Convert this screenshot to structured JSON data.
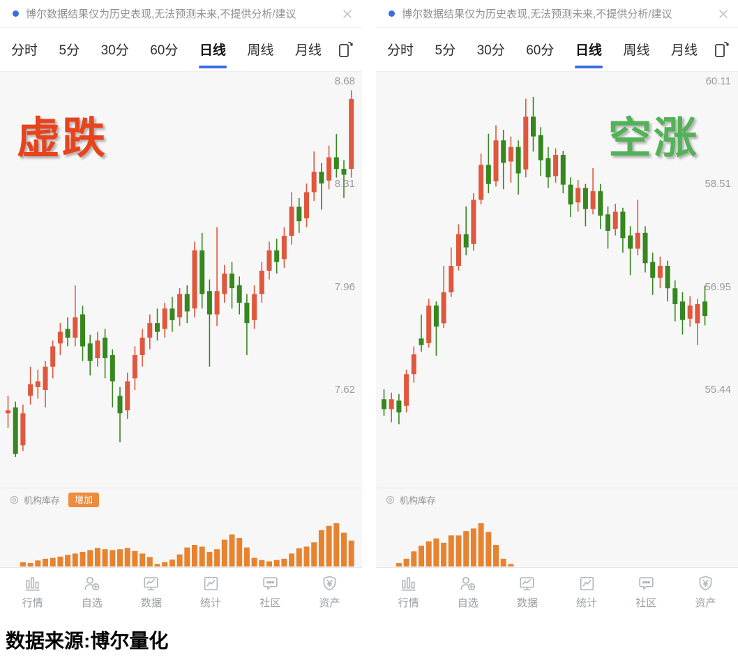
{
  "colors": {
    "candle_up": "#df573d",
    "candle_down": "#35871e",
    "volume_bar": "#e7832f",
    "accent_blue": "#3a6ee0",
    "notice_dot_blue": "#3a6be0",
    "badge_orange": "#ee8b3c",
    "overlay_red": "#e8431c",
    "overlay_green": "#53b257",
    "chart_background": "#f7f7f8",
    "axis_text_gray": "#9b9b9b",
    "nav_gray": "#9aa0a6"
  },
  "footer": {
    "source_label": "数据来源:博尔量化"
  },
  "panels": [
    {
      "notice": {
        "text": "博尔数据结果仅为历史表现,无法预测未来,不提供分析/建议",
        "close_icon": "close-x"
      },
      "tabs": [
        {
          "label": "分时",
          "active": false
        },
        {
          "label": "5分",
          "active": false
        },
        {
          "label": "30分",
          "active": false
        },
        {
          "label": "60分",
          "active": false
        },
        {
          "label": "日线",
          "active": true
        },
        {
          "label": "周线",
          "active": false
        },
        {
          "label": "月线",
          "active": false
        }
      ],
      "overlay": {
        "text": "虚跌",
        "color": "#e8431c",
        "position": "top-left"
      },
      "indicator": {
        "label": "机构库存",
        "badge": "增加"
      },
      "y_axis": {
        "ticks": [
          {
            "label": "8.68",
            "price": 8.68
          },
          {
            "label": "8.31",
            "price": 8.31
          },
          {
            "label": "7.96",
            "price": 7.96
          },
          {
            "label": "7.62",
            "price": 7.62
          }
        ]
      },
      "chart_data": {
        "type": "candlestick",
        "ylim": [
          7.28,
          8.72
        ],
        "ohlc": [
          [
            7.54,
            7.6,
            7.49,
            7.55
          ],
          [
            7.56,
            7.58,
            7.39,
            7.4
          ],
          [
            7.43,
            7.57,
            7.41,
            7.54
          ],
          [
            7.6,
            7.7,
            7.57,
            7.64
          ],
          [
            7.63,
            7.69,
            7.59,
            7.65
          ],
          [
            7.62,
            7.72,
            7.56,
            7.7
          ],
          [
            7.7,
            7.79,
            7.66,
            7.77
          ],
          [
            7.78,
            7.85,
            7.74,
            7.82
          ],
          [
            7.83,
            7.87,
            7.77,
            7.8
          ],
          [
            7.8,
            7.98,
            7.77,
            7.87
          ],
          [
            7.88,
            7.91,
            7.72,
            7.77
          ],
          [
            7.78,
            7.81,
            7.67,
            7.72
          ],
          [
            7.73,
            7.82,
            7.7,
            7.79
          ],
          [
            7.8,
            7.83,
            7.66,
            7.73
          ],
          [
            7.74,
            7.76,
            7.56,
            7.65
          ],
          [
            7.6,
            7.63,
            7.44,
            7.54
          ],
          [
            7.55,
            7.68,
            7.52,
            7.65
          ],
          [
            7.66,
            7.77,
            7.62,
            7.74
          ],
          [
            7.74,
            7.83,
            7.7,
            7.8
          ],
          [
            7.8,
            7.88,
            7.76,
            7.85
          ],
          [
            7.85,
            7.9,
            7.79,
            7.82
          ],
          [
            7.83,
            7.92,
            7.8,
            7.9
          ],
          [
            7.9,
            7.94,
            7.82,
            7.86
          ],
          [
            7.87,
            7.97,
            7.84,
            7.95
          ],
          [
            7.95,
            7.98,
            7.85,
            7.89
          ],
          [
            7.9,
            8.13,
            7.87,
            8.1
          ],
          [
            8.1,
            8.16,
            7.9,
            7.95
          ],
          [
            7.96,
            8.0,
            7.7,
            7.88
          ],
          [
            7.88,
            8.18,
            7.84,
            7.96
          ],
          [
            7.95,
            8.05,
            7.92,
            8.02
          ],
          [
            8.02,
            8.06,
            7.9,
            7.97
          ],
          [
            7.98,
            8.01,
            7.88,
            7.92
          ],
          [
            7.92,
            7.95,
            7.74,
            7.85
          ],
          [
            7.86,
            7.98,
            7.83,
            7.95
          ],
          [
            7.95,
            8.06,
            7.92,
            8.03
          ],
          [
            8.03,
            8.13,
            8.0,
            8.1
          ],
          [
            8.1,
            8.14,
            8.02,
            8.06
          ],
          [
            8.07,
            8.18,
            8.04,
            8.15
          ],
          [
            8.15,
            8.3,
            8.12,
            8.25
          ],
          [
            8.25,
            8.28,
            8.16,
            8.2
          ],
          [
            8.21,
            8.33,
            8.18,
            8.3
          ],
          [
            8.3,
            8.44,
            8.27,
            8.37
          ],
          [
            8.37,
            8.4,
            8.24,
            8.33
          ],
          [
            8.34,
            8.46,
            8.31,
            8.42
          ],
          [
            8.42,
            8.5,
            8.35,
            8.38
          ],
          [
            8.38,
            8.41,
            8.28,
            8.36
          ],
          [
            8.38,
            8.65,
            8.35,
            8.62
          ]
        ],
        "volume": [
          0,
          0,
          0.1,
          0.08,
          0.14,
          0.18,
          0.2,
          0.23,
          0.27,
          0.3,
          0.34,
          0.38,
          0.43,
          0.4,
          0.38,
          0.4,
          0.43,
          0.36,
          0.3,
          0.22,
          0.06,
          0.1,
          0.16,
          0.28,
          0.44,
          0.5,
          0.46,
          0.34,
          0.4,
          0.62,
          0.74,
          0.66,
          0.44,
          0.2,
          0.15,
          0.12,
          0.15,
          0.18,
          0.3,
          0.42,
          0.46,
          0.56,
          0.84,
          0.94,
          1.0,
          0.78,
          0.6
        ]
      },
      "nav": [
        {
          "label": "行情",
          "icon": "bar-chart-icon"
        },
        {
          "label": "自选",
          "icon": "user-add-icon"
        },
        {
          "label": "数据",
          "icon": "monitor-chart-icon"
        },
        {
          "label": "统计",
          "icon": "stats-chart-icon"
        },
        {
          "label": "社区",
          "icon": "chat-bubble-icon"
        },
        {
          "label": "资产",
          "icon": "shield-yen-icon"
        }
      ]
    },
    {
      "notice": {
        "text": "博尔数据结果仅为历史表现,无法预测未来,不提供分析/建议",
        "close_icon": "close-x"
      },
      "tabs": [
        {
          "label": "分时",
          "active": false
        },
        {
          "label": "5分",
          "active": false
        },
        {
          "label": "30分",
          "active": false
        },
        {
          "label": "60分",
          "active": false
        },
        {
          "label": "日线",
          "active": true
        },
        {
          "label": "周线",
          "active": false
        },
        {
          "label": "月线",
          "active": false
        }
      ],
      "overlay": {
        "text": "空涨",
        "color": "#53b257",
        "position": "top-right"
      },
      "indicator": {
        "label": "机构库存",
        "badge": ""
      },
      "y_axis": {
        "ticks": [
          {
            "label": "60.11",
            "price": 60.11
          },
          {
            "label": "58.51",
            "price": 58.51
          },
          {
            "label": "56.95",
            "price": 56.95
          },
          {
            "label": "55.44",
            "price": 55.44
          }
        ]
      },
      "chart_data": {
        "type": "candlestick",
        "ylim": [
          53.95,
          60.26
        ],
        "ohlc": [
          [
            55.3,
            55.45,
            55.05,
            55.15
          ],
          [
            55.15,
            55.4,
            54.95,
            55.3
          ],
          [
            55.28,
            55.38,
            54.92,
            55.1
          ],
          [
            55.2,
            55.75,
            55.1,
            55.68
          ],
          [
            55.68,
            56.1,
            55.55,
            55.98
          ],
          [
            56.22,
            56.58,
            56.02,
            56.12
          ],
          [
            56.15,
            56.82,
            56.08,
            56.72
          ],
          [
            56.72,
            56.78,
            55.96,
            56.4
          ],
          [
            56.45,
            57.32,
            56.38,
            56.92
          ],
          [
            56.92,
            57.6,
            56.85,
            57.32
          ],
          [
            57.32,
            57.95,
            57.25,
            57.8
          ],
          [
            57.8,
            58.22,
            57.48,
            57.6
          ],
          [
            57.65,
            58.42,
            57.55,
            58.32
          ],
          [
            58.32,
            59.02,
            58.25,
            58.85
          ],
          [
            58.85,
            59.32,
            58.42,
            58.56
          ],
          [
            58.6,
            59.45,
            58.52,
            59.22
          ],
          [
            59.22,
            59.38,
            58.48,
            58.88
          ],
          [
            58.9,
            59.28,
            58.58,
            59.12
          ],
          [
            59.12,
            59.22,
            58.4,
            58.72
          ],
          [
            58.78,
            59.85,
            58.66,
            59.58
          ],
          [
            59.58,
            59.88,
            59.05,
            59.28
          ],
          [
            59.3,
            59.42,
            58.68,
            58.92
          ],
          [
            58.95,
            59.12,
            58.5,
            58.66
          ],
          [
            58.68,
            59.1,
            58.58,
            59.0
          ],
          [
            59.0,
            59.06,
            58.42,
            58.55
          ],
          [
            58.55,
            58.66,
            58.06,
            58.25
          ],
          [
            58.28,
            58.62,
            58.14,
            58.5
          ],
          [
            58.5,
            58.56,
            57.92,
            58.18
          ],
          [
            58.18,
            58.8,
            58.1,
            58.45
          ],
          [
            58.45,
            58.56,
            57.88,
            58.08
          ],
          [
            58.1,
            58.22,
            57.58,
            57.85
          ],
          [
            57.88,
            58.26,
            57.78,
            58.14
          ],
          [
            58.14,
            58.2,
            57.52,
            57.74
          ],
          [
            57.78,
            57.92,
            57.18,
            57.58
          ],
          [
            57.58,
            58.32,
            57.48,
            57.82
          ],
          [
            57.82,
            57.92,
            57.22,
            57.36
          ],
          [
            57.38,
            57.52,
            56.88,
            57.14
          ],
          [
            57.14,
            57.46,
            56.98,
            57.32
          ],
          [
            57.32,
            57.4,
            56.78,
            56.98
          ],
          [
            56.98,
            57.1,
            56.48,
            56.74
          ],
          [
            56.78,
            56.92,
            56.28,
            56.5
          ],
          [
            56.52,
            56.86,
            56.4,
            56.72
          ],
          [
            56.45,
            56.82,
            56.12,
            56.74
          ],
          [
            56.78,
            57.02,
            56.42,
            56.56
          ]
        ],
        "volume": [
          0,
          0,
          0.08,
          0.18,
          0.35,
          0.48,
          0.58,
          0.65,
          0.55,
          0.72,
          0.72,
          0.82,
          0.88,
          1.0,
          0.8,
          0.5,
          0.18,
          0.06,
          0,
          0,
          0,
          0,
          0,
          0,
          0,
          0,
          0,
          0,
          0,
          0,
          0,
          0,
          0,
          0,
          0,
          0,
          0,
          0,
          0,
          0,
          0,
          0,
          0,
          0
        ]
      },
      "nav": [
        {
          "label": "行情",
          "icon": "bar-chart-icon"
        },
        {
          "label": "自选",
          "icon": "user-add-icon"
        },
        {
          "label": "数据",
          "icon": "monitor-chart-icon"
        },
        {
          "label": "统计",
          "icon": "stats-chart-icon"
        },
        {
          "label": "社区",
          "icon": "chat-bubble-icon"
        },
        {
          "label": "资产",
          "icon": "shield-yen-icon"
        }
      ]
    }
  ]
}
